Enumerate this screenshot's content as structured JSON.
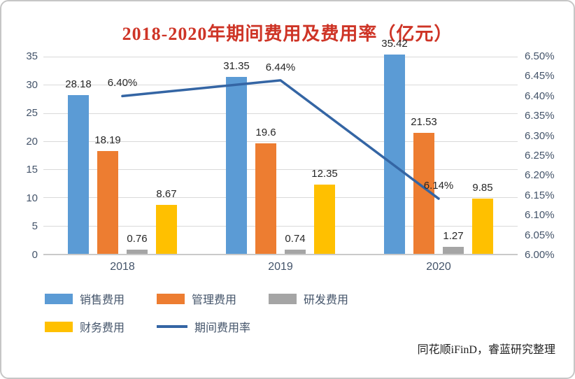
{
  "title": "2018-2020年期间费用及费用率（亿元）",
  "source": "同花顺iFinD，睿蓝研究整理",
  "colors": {
    "title_red": "#ce3426",
    "axis_text": "#44546a",
    "gridline": "#d9d9d9"
  },
  "chart_data": {
    "type": "bar",
    "subtype": "grouped bars with secondary-axis line",
    "title": "2018-2020年期间费用及费用率（亿元）",
    "categories": [
      "2018",
      "2019",
      "2020"
    ],
    "series": [
      {
        "name": "销售费用",
        "color": "#5b9bd5",
        "values": [
          28.18,
          31.35,
          35.42
        ],
        "labels": [
          "28.18",
          "31.35",
          "35.42"
        ]
      },
      {
        "name": "管理费用",
        "color": "#ed7d31",
        "values": [
          18.19,
          19.6,
          21.53
        ],
        "labels": [
          "18.19",
          "19.6",
          "21.53"
        ]
      },
      {
        "name": "研发费用",
        "color": "#a5a5a5",
        "values": [
          0.76,
          0.74,
          1.27
        ],
        "labels": [
          "0.76",
          "0.74",
          "1.27"
        ]
      },
      {
        "name": "财务费用",
        "color": "#ffc000",
        "values": [
          8.67,
          12.35,
          9.85
        ],
        "labels": [
          "8.67",
          "12.35",
          "9.85"
        ]
      }
    ],
    "line_series": {
      "name": "期间费用率",
      "color": "#3465a4",
      "values": [
        6.4,
        6.44,
        6.14
      ],
      "labels": [
        "6.40%",
        "6.44%",
        "6.14%"
      ]
    },
    "left_axis": {
      "min": 0,
      "max": 35,
      "ticks": [
        "35",
        "30",
        "25",
        "20",
        "15",
        "10",
        "5",
        "0"
      ]
    },
    "right_axis": {
      "min": 6.0,
      "max": 6.5,
      "ticks": [
        "6.50%",
        "6.45%",
        "6.40%",
        "6.35%",
        "6.30%",
        "6.25%",
        "6.20%",
        "6.15%",
        "6.10%",
        "6.05%",
        "6.00%"
      ]
    },
    "grid": true,
    "legend_position": "bottom-left"
  }
}
